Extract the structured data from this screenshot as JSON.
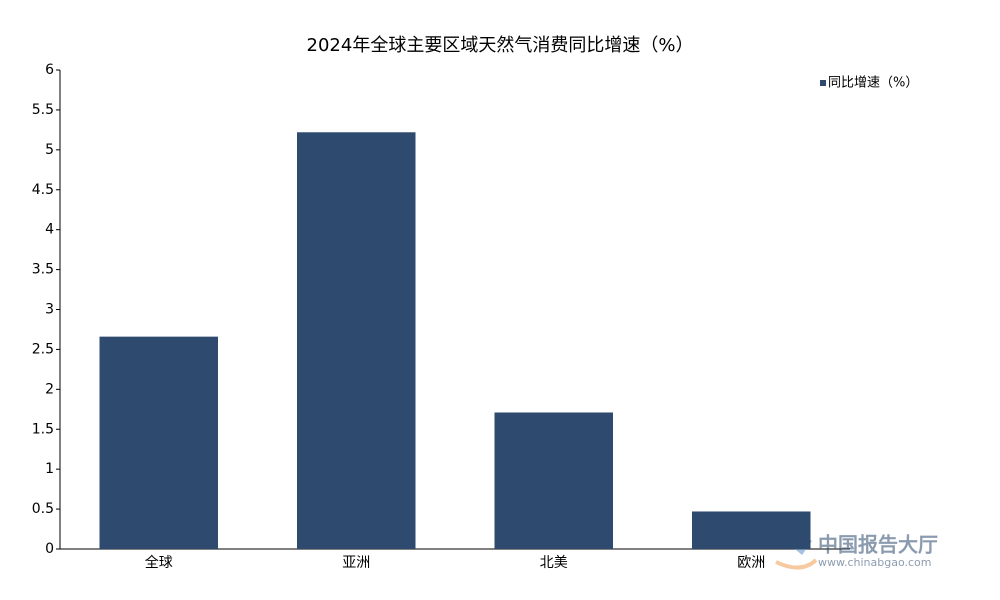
{
  "chart_data": {
    "type": "bar",
    "title": "2024年全球主要区域天然气消费同比增速（%）",
    "categories": [
      "全球",
      "亚洲",
      "北美",
      "欧洲"
    ],
    "series": [
      {
        "name": "同比增速（%）",
        "color": "#2e4a6e",
        "values": [
          2.66,
          5.22,
          1.71,
          0.47
        ]
      }
    ],
    "ylim": [
      0,
      6
    ],
    "yticks": [
      0,
      0.5,
      1,
      1.5,
      2,
      2.5,
      3,
      3.5,
      4,
      4.5,
      5,
      5.5,
      6
    ],
    "grid": false,
    "legend": "top-right"
  },
  "watermark": {
    "name": "中国报告大厅",
    "url": "www.chinabgao.com"
  }
}
